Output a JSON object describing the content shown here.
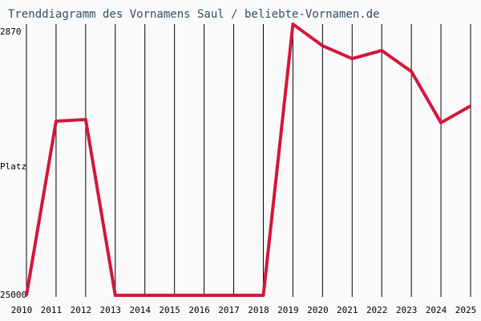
{
  "chart_data": {
    "type": "line",
    "title": "Trenddiagramm des Vornamens Saul / beliebte-Vornamen.de",
    "y_label": "Platz",
    "categories": [
      "2010",
      "2011",
      "2012",
      "2013",
      "2014",
      "2015",
      "2016",
      "2017",
      "2018",
      "2019",
      "2020",
      "2021",
      "2022",
      "2023",
      "2024",
      "2025"
    ],
    "series": [
      {
        "name": "Saul",
        "color": "#d4163a",
        "values": [
          25000,
          10360,
          10220,
          25000,
          25000,
          25000,
          25000,
          25000,
          25000,
          2200,
          4020,
          5100,
          4420,
          6180,
          10490,
          9080
        ]
      }
    ],
    "ylim": [
      25000,
      2870
    ],
    "yticks": [
      2870,
      25000
    ],
    "grid": true
  }
}
